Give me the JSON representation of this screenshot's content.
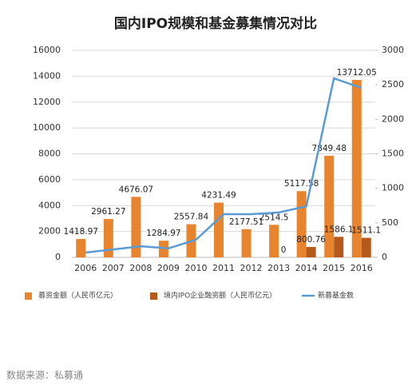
{
  "chart_data": {
    "type": "bar_line",
    "title": "国内IPO规模和基金募集情况对比",
    "categories": [
      "2006",
      "2007",
      "2008",
      "2009",
      "2010",
      "2011",
      "2012",
      "2013",
      "2014",
      "2015",
      "2016"
    ],
    "series": [
      {
        "name": "募资金额（人民币亿元）",
        "color": "#e8832e",
        "type": "bar",
        "values": [
          1418.97,
          2961.27,
          4676.07,
          1284.97,
          2557.84,
          4231.49,
          2177.51,
          2514.5,
          5117.58,
          7849.48,
          13712.05
        ]
      },
      {
        "name": "境内IPO企业融资额（人民币亿元）",
        "color": "#b65a1c",
        "type": "bar",
        "values": [
          null,
          null,
          null,
          null,
          null,
          null,
          null,
          0,
          800.76,
          1586.1,
          1511.1
        ]
      },
      {
        "name": "新募基金数",
        "color": "#5b9bd5",
        "type": "line",
        "axis": "y2",
        "values": [
          70,
          115,
          160,
          130,
          255,
          625,
          625,
          650,
          740,
          2595,
          2455
        ]
      }
    ],
    "ylim": [
      0,
      16000
    ],
    "yticks": [
      0,
      2000,
      4000,
      6000,
      8000,
      10000,
      12000,
      14000,
      16000
    ],
    "y2lim": [
      0,
      3000
    ],
    "y2ticks": [
      0,
      500,
      1000,
      1500,
      2000,
      2500,
      3000
    ],
    "grid": true,
    "source": "数据来源：私募通"
  }
}
